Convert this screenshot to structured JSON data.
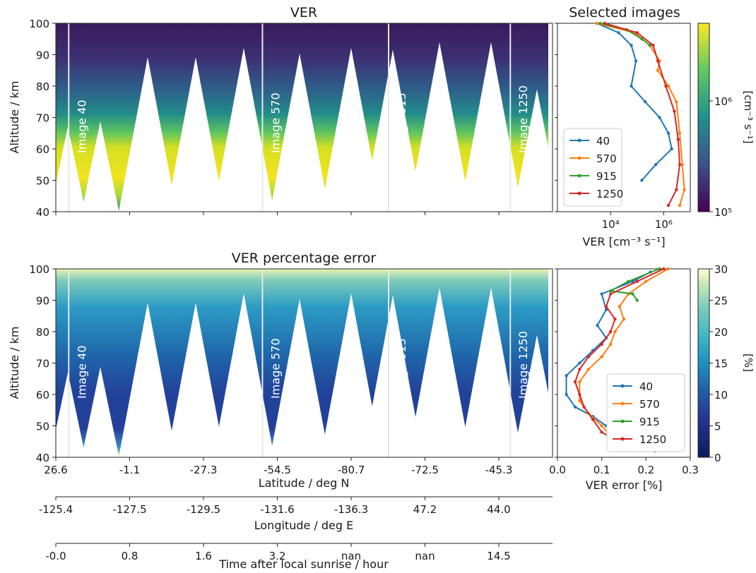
{
  "chart_data": [
    {
      "type": "heatmap",
      "title": "VER",
      "ylabel": "Altitude / km",
      "ylim": [
        40,
        100
      ],
      "yticks": [
        "40",
        "50",
        "60",
        "70",
        "80",
        "90",
        "100"
      ],
      "image_markers": [
        {
          "label": "Image 40",
          "frac": 0.026
        },
        {
          "label": "Image 570",
          "frac": 0.416
        },
        {
          "label": "Image 915",
          "frac": 0.67
        },
        {
          "label": "Image 1250",
          "frac": 0.915
        }
      ],
      "colormap": "viridis"
    },
    {
      "type": "line",
      "title": "Selected images",
      "xlabel": "VER [cm⁻³ s⁻¹]",
      "xscale": "log",
      "xlim": [
        100,
        10000000
      ],
      "xticks": [
        "10⁴",
        "10⁶"
      ],
      "ylim": [
        40,
        100
      ],
      "legend_position": "lower-left",
      "series": [
        {
          "name": "40",
          "color": "#1f77b4",
          "x": [
            3000,
            20000,
            60000,
            90000,
            60000,
            200000,
            700000,
            1500000,
            2000000,
            500000,
            150000
          ],
          "y": [
            100,
            97,
            93,
            88,
            80,
            75,
            70,
            65,
            60,
            55,
            50
          ]
        },
        {
          "name": "570",
          "color": "#ff7f0e",
          "x": [
            3000,
            80000,
            300000,
            700000,
            600000,
            1500000,
            3000000,
            4000000,
            5000000,
            6000000,
            4000000
          ],
          "y": [
            100,
            97,
            93,
            88,
            85,
            80,
            75,
            65,
            55,
            47,
            42
          ]
        },
        {
          "name": "915",
          "color": "#2ca02c",
          "x": [
            4000,
            40000,
            150000,
            300000
          ],
          "y": [
            100,
            98,
            95,
            93
          ]
        },
        {
          "name": "1250",
          "color": "#d62728",
          "x": [
            6000,
            100000,
            400000,
            600000,
            1200000,
            2500000,
            3500000,
            4000000,
            3000000,
            1500000
          ],
          "y": [
            100,
            97,
            93,
            88,
            80,
            72,
            63,
            55,
            47,
            42
          ]
        }
      ]
    },
    {
      "type": "heatmap",
      "title": "VER percentage error",
      "ylabel": "Altitude / km",
      "ylim": [
        40,
        100
      ],
      "yticks": [
        "40",
        "50",
        "60",
        "70",
        "80",
        "90",
        "100"
      ],
      "image_markers": [
        {
          "label": "Image 40",
          "frac": 0.026
        },
        {
          "label": "Image 570",
          "frac": 0.416
        },
        {
          "label": "Image 915",
          "frac": 0.67
        },
        {
          "label": "Image 1250",
          "frac": 0.915
        }
      ],
      "colormap": "YlGnBu_r",
      "x_axes": [
        {
          "label": "Latitude / deg N",
          "ticks": [
            "26.6",
            "-1.1",
            "-27.3",
            "-54.5",
            "-80.7",
            "-72.5",
            "-45.3"
          ]
        },
        {
          "label": "Longitude / deg E",
          "ticks": [
            "-125.4",
            "-127.5",
            "-129.5",
            "-131.6",
            "-136.3",
            "47.2",
            "44.0"
          ]
        },
        {
          "label": "Time after local sunrise / hour",
          "ticks": [
            "-0.0",
            "0.8",
            "1.6",
            "3.2",
            "nan",
            "nan",
            "14.5"
          ]
        }
      ]
    },
    {
      "type": "line",
      "xlabel": "VER error [%]",
      "xlim": [
        0.0,
        0.3
      ],
      "xticks": [
        "0.0",
        "0.1",
        "0.2",
        "0.3"
      ],
      "ylim": [
        40,
        100
      ],
      "legend_position": "lower-right",
      "series": [
        {
          "name": "40",
          "color": "#1f77b4",
          "x": [
            0.21,
            0.17,
            0.1,
            0.11,
            0.09,
            0.11,
            0.08,
            0.05,
            0.02,
            0.02,
            0.04,
            0.08,
            0.11
          ],
          "y": [
            99,
            96,
            92,
            87,
            82,
            78,
            74,
            70,
            66,
            60,
            56,
            53,
            50
          ]
        },
        {
          "name": "570",
          "color": "#ff7f0e",
          "x": [
            0.25,
            0.2,
            0.16,
            0.14,
            0.15,
            0.13,
            0.12,
            0.1,
            0.07,
            0.05,
            0.05,
            0.07,
            0.1,
            0.12,
            0.14
          ],
          "y": [
            100,
            96,
            92,
            88,
            84,
            80,
            76,
            72,
            68,
            64,
            58,
            54,
            50,
            47,
            43
          ]
        },
        {
          "name": "915",
          "color": "#2ca02c",
          "x": [
            0.23,
            0.16,
            0.12,
            0.17,
            0.18
          ],
          "y": [
            100,
            96,
            93,
            92,
            90
          ]
        },
        {
          "name": "1250",
          "color": "#d62728",
          "x": [
            0.24,
            0.18,
            0.12,
            0.11,
            0.13,
            0.12,
            0.1,
            0.07,
            0.05,
            0.04,
            0.05,
            0.06,
            0.08,
            0.1,
            0.15,
            0.22
          ],
          "y": [
            100,
            96,
            92,
            88,
            84,
            80,
            76,
            72,
            68,
            64,
            60,
            56,
            52,
            48,
            44,
            42
          ]
        }
      ]
    }
  ],
  "colorbars": [
    {
      "ticks": [
        "10⁵",
        "10⁶"
      ],
      "label": "[cm⁻³ s⁻¹]",
      "scale": "log"
    },
    {
      "ticks": [
        "0",
        "5",
        "10",
        "15",
        "20",
        "25",
        "30"
      ],
      "label": "[%]",
      "range": [
        0,
        30
      ]
    }
  ]
}
